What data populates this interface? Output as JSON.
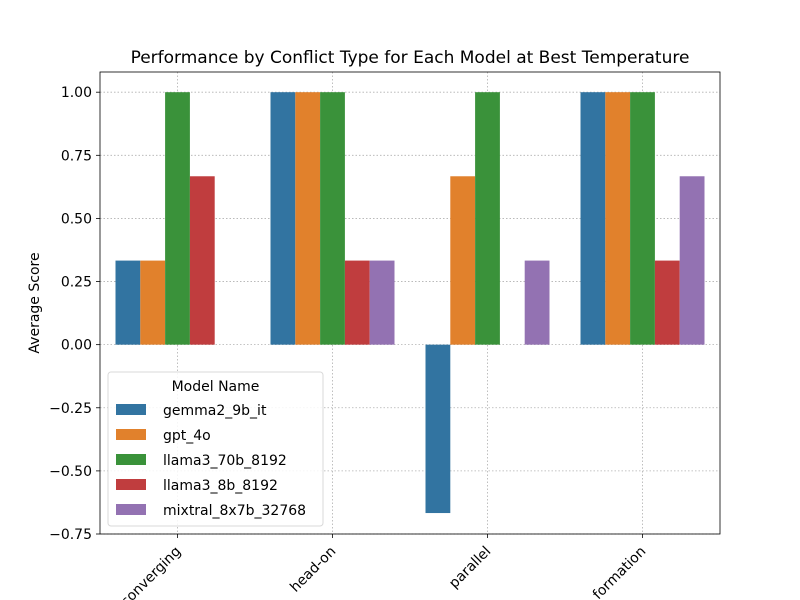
{
  "chart_data": {
    "type": "bar",
    "title": "Performance by Conflict Type for Each Model at Best Temperature",
    "xlabel": "",
    "ylabel": "Average Score",
    "categories": [
      "converging",
      "head-on",
      "parallel",
      "formation"
    ],
    "ylim": [
      -0.75,
      1.08
    ],
    "yticks": [
      "1.00",
      "0.75",
      "0.50",
      "0.25",
      "0.00",
      "−0.25",
      "−0.50",
      "−0.75"
    ],
    "grid": true,
    "legend_title": "Model Name",
    "legend_position": "lower-left",
    "series": [
      {
        "name": "gemma2_9b_it",
        "color": "#3274a1",
        "values": [
          0.333,
          1.0,
          -0.667,
          1.0
        ]
      },
      {
        "name": "gpt_4o",
        "color": "#e1812c",
        "values": [
          0.333,
          1.0,
          0.667,
          1.0
        ]
      },
      {
        "name": "llama3_70b_8192",
        "color": "#3a923a",
        "values": [
          1.0,
          1.0,
          1.0,
          1.0
        ]
      },
      {
        "name": "llama3_8b_8192",
        "color": "#c03d3e",
        "values": [
          0.667,
          0.333,
          0.0,
          0.333
        ]
      },
      {
        "name": "mixtral_8x7b_32768",
        "color": "#9372b2",
        "values": [
          0.0,
          0.333,
          0.333,
          0.667
        ]
      }
    ]
  }
}
